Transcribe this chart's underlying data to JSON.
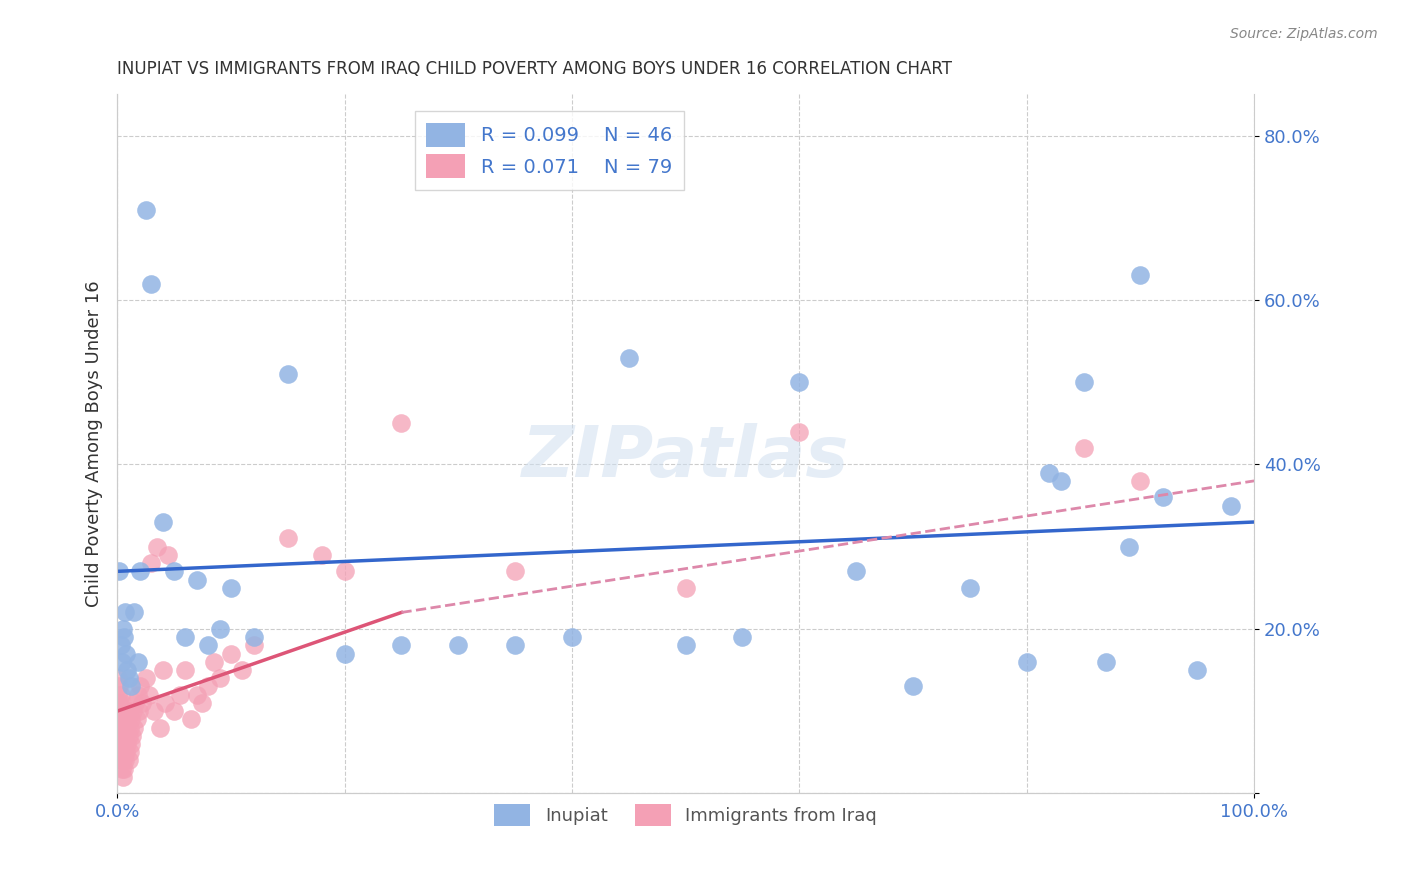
{
  "title": "INUPIAT VS IMMIGRANTS FROM IRAQ CHILD POVERTY AMONG BOYS UNDER 16 CORRELATION CHART",
  "source": "Source: ZipAtlas.com",
  "xlabel": "",
  "ylabel": "Child Poverty Among Boys Under 16",
  "xlim": [
    0,
    1.0
  ],
  "ylim": [
    0,
    0.85
  ],
  "xticks": [
    0.0,
    0.2,
    0.4,
    0.6,
    0.8,
    1.0
  ],
  "xticklabels": [
    "0.0%",
    "",
    "",
    "",
    "",
    "100.0%"
  ],
  "yticks": [
    0.0,
    0.2,
    0.4,
    0.6,
    0.8
  ],
  "yticklabels": [
    "",
    "20.0%",
    "40.0%",
    "60.0%",
    "80.0%"
  ],
  "watermark": "ZIPatlas",
  "series": [
    {
      "name": "Inupiat",
      "R": 0.099,
      "N": 46,
      "color": "#92b4e3",
      "marker_color": "#7aaad8",
      "x": [
        0.002,
        0.003,
        0.004,
        0.005,
        0.006,
        0.007,
        0.008,
        0.009,
        0.01,
        0.012,
        0.015,
        0.018,
        0.02,
        0.025,
        0.03,
        0.04,
        0.05,
        0.06,
        0.07,
        0.08,
        0.09,
        0.1,
        0.12,
        0.15,
        0.2,
        0.25,
        0.3,
        0.35,
        0.4,
        0.45,
        0.5,
        0.55,
        0.6,
        0.65,
        0.7,
        0.75,
        0.8,
        0.82,
        0.83,
        0.85,
        0.87,
        0.89,
        0.9,
        0.92,
        0.95,
        0.98
      ],
      "y": [
        0.27,
        0.18,
        0.16,
        0.2,
        0.19,
        0.22,
        0.17,
        0.15,
        0.14,
        0.13,
        0.22,
        0.16,
        0.27,
        0.71,
        0.62,
        0.33,
        0.27,
        0.19,
        0.26,
        0.18,
        0.2,
        0.25,
        0.19,
        0.51,
        0.17,
        0.18,
        0.18,
        0.18,
        0.19,
        0.53,
        0.18,
        0.19,
        0.5,
        0.27,
        0.13,
        0.25,
        0.16,
        0.39,
        0.38,
        0.5,
        0.16,
        0.3,
        0.63,
        0.36,
        0.15,
        0.35
      ]
    },
    {
      "name": "Immigrants from Iraq",
      "R": 0.071,
      "N": 79,
      "color": "#f4a0b5",
      "marker_color": "#f08090",
      "x": [
        0.001,
        0.001,
        0.001,
        0.001,
        0.001,
        0.002,
        0.002,
        0.002,
        0.002,
        0.002,
        0.003,
        0.003,
        0.003,
        0.003,
        0.003,
        0.004,
        0.004,
        0.004,
        0.004,
        0.004,
        0.005,
        0.005,
        0.005,
        0.005,
        0.006,
        0.006,
        0.006,
        0.007,
        0.007,
        0.008,
        0.008,
        0.009,
        0.009,
        0.01,
        0.01,
        0.01,
        0.011,
        0.011,
        0.012,
        0.012,
        0.013,
        0.014,
        0.015,
        0.016,
        0.017,
        0.018,
        0.019,
        0.02,
        0.022,
        0.025,
        0.028,
        0.03,
        0.032,
        0.035,
        0.038,
        0.04,
        0.042,
        0.045,
        0.05,
        0.055,
        0.06,
        0.065,
        0.07,
        0.075,
        0.08,
        0.085,
        0.09,
        0.1,
        0.11,
        0.12,
        0.15,
        0.18,
        0.2,
        0.25,
        0.35,
        0.5,
        0.6,
        0.85,
        0.9
      ],
      "y": [
        0.07,
        0.08,
        0.1,
        0.12,
        0.14,
        0.05,
        0.07,
        0.09,
        0.11,
        0.13,
        0.04,
        0.06,
        0.08,
        0.1,
        0.12,
        0.03,
        0.05,
        0.07,
        0.09,
        0.11,
        0.02,
        0.04,
        0.06,
        0.08,
        0.03,
        0.05,
        0.09,
        0.04,
        0.07,
        0.05,
        0.08,
        0.06,
        0.09,
        0.04,
        0.07,
        0.1,
        0.05,
        0.08,
        0.06,
        0.09,
        0.07,
        0.1,
        0.08,
        0.11,
        0.09,
        0.12,
        0.1,
        0.13,
        0.11,
        0.14,
        0.12,
        0.28,
        0.1,
        0.3,
        0.08,
        0.15,
        0.11,
        0.29,
        0.1,
        0.12,
        0.15,
        0.09,
        0.12,
        0.11,
        0.13,
        0.16,
        0.14,
        0.17,
        0.15,
        0.18,
        0.31,
        0.29,
        0.27,
        0.45,
        0.27,
        0.25,
        0.44,
        0.42,
        0.38
      ]
    }
  ],
  "trend_blue": {
    "x_start": 0.0,
    "x_end": 1.0,
    "y_start": 0.27,
    "y_end": 0.33
  },
  "trend_pink_solid": {
    "x_start": 0.0,
    "x_end": 0.25,
    "y_start": 0.1,
    "y_end": 0.22
  },
  "trend_pink_dashed": {
    "x_start": 0.25,
    "x_end": 1.0,
    "y_start": 0.22,
    "y_end": 0.38
  },
  "bg_color": "#ffffff",
  "grid_color": "#cccccc",
  "axis_color": "#cccccc",
  "legend_R_color": "#4477cc",
  "legend_N_color": "#4477cc",
  "title_color": "#333333",
  "ylabel_color": "#333333",
  "tick_color_x": "#4477cc",
  "tick_color_y": "#4477cc"
}
